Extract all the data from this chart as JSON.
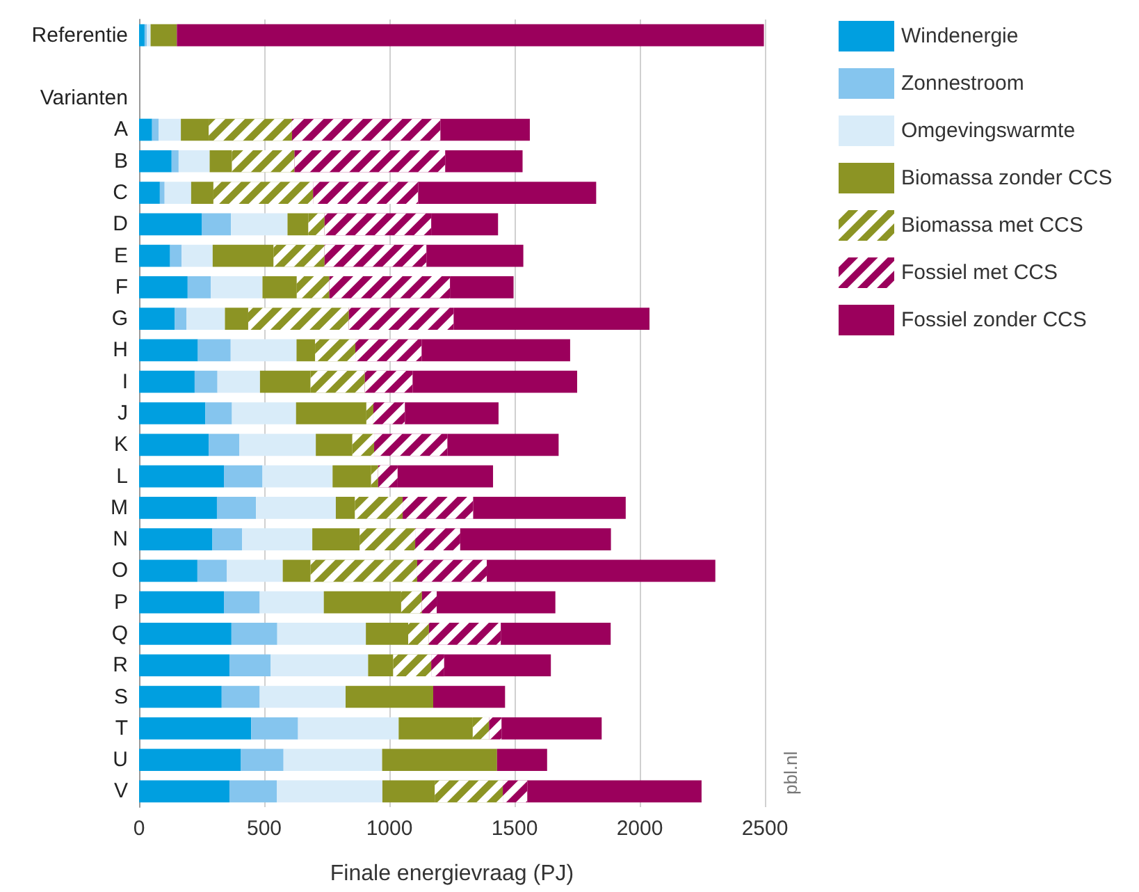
{
  "chart_data": {
    "type": "bar",
    "orientation": "horizontal",
    "stacked": true,
    "categories": [
      "Referentie",
      null,
      "Varianten",
      "A",
      "B",
      "C",
      "D",
      "E",
      "F",
      "G",
      "H",
      "I",
      "J",
      "K",
      "L",
      "M",
      "N",
      "O",
      "P",
      "Q",
      "R",
      "S",
      "T",
      "U",
      "V"
    ],
    "xlabel": "Finale energievraag (PJ)",
    "xlim": [
      0,
      2500
    ],
    "xticks": [
      0,
      500,
      1000,
      1500,
      2000,
      2500
    ],
    "grid": "x",
    "legend": "top right",
    "annotations": [
      "pbl.nl"
    ],
    "series": [
      {
        "name": "Windenergie",
        "color": "#009fe0",
        "values": [
          22,
          null,
          null,
          52,
          130,
          83,
          250,
          124,
          194,
          143,
          235,
          222,
          265,
          278,
          339,
          311,
          293,
          233,
          339,
          369,
          361,
          330,
          448,
          407,
          361
        ]
      },
      {
        "name": "Zonnestroom",
        "color": "#85c5ee",
        "values": [
          9,
          null,
          null,
          26,
          28,
          19,
          117,
          46,
          93,
          46,
          131,
          91,
          106,
          122,
          154,
          156,
          119,
          117,
          143,
          183,
          165,
          152,
          187,
          170,
          189
        ]
      },
      {
        "name": "Omgevingswarmte",
        "color": "#d9ecf9",
        "values": [
          15,
          null,
          null,
          89,
          124,
          106,
          226,
          124,
          206,
          154,
          263,
          170,
          256,
          306,
          280,
          319,
          280,
          224,
          256,
          354,
          389,
          343,
          402,
          394,
          422
        ]
      },
      {
        "name": "Biomassa zonder CCS",
        "color": "#8c9424",
        "values": [
          105,
          null,
          null,
          111,
          89,
          89,
          83,
          243,
          137,
          93,
          74,
          202,
          281,
          146,
          154,
          76,
          189,
          111,
          309,
          169,
          100,
          350,
          296,
          459,
          209
        ]
      },
      {
        "name": "Biomassa met CCS",
        "color": "#8c9424",
        "values": [
          0,
          null,
          null,
          333,
          250,
          398,
          65,
          204,
          130,
          402,
          161,
          217,
          28,
          87,
          28,
          191,
          222,
          426,
          83,
          83,
          152,
          0,
          65,
          0,
          272
        ]
      },
      {
        "name": "Fossiel met CCS",
        "color": "#9b005c",
        "values": [
          0,
          null,
          null,
          593,
          602,
          420,
          426,
          407,
          482,
          419,
          265,
          191,
          126,
          293,
          78,
          282,
          180,
          278,
          59,
          287,
          52,
          0,
          50,
          0,
          98
        ]
      },
      {
        "name": "Fossiel zonder CCS",
        "color": "#9b005c",
        "values": [
          2345,
          null,
          null,
          357,
          309,
          711,
          267,
          387,
          254,
          782,
          593,
          657,
          374,
          444,
          381,
          609,
          602,
          913,
          474,
          439,
          426,
          287,
          400,
          200,
          696
        ]
      }
    ]
  }
}
